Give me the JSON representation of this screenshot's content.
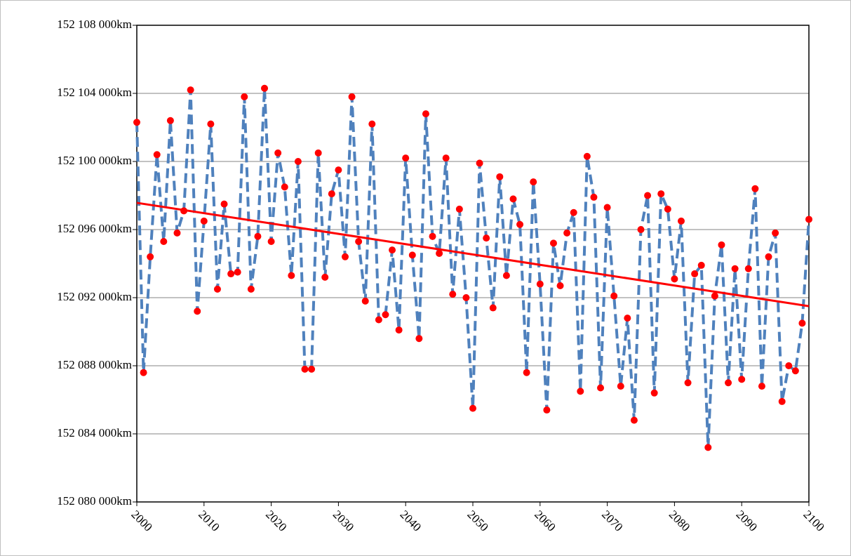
{
  "chart_data": {
    "type": "line",
    "x": [
      2000,
      2001,
      2002,
      2003,
      2004,
      2005,
      2006,
      2007,
      2008,
      2009,
      2010,
      2011,
      2012,
      2013,
      2014,
      2015,
      2016,
      2017,
      2018,
      2019,
      2020,
      2021,
      2022,
      2023,
      2024,
      2025,
      2026,
      2027,
      2028,
      2029,
      2030,
      2031,
      2032,
      2033,
      2034,
      2035,
      2036,
      2037,
      2038,
      2039,
      2040,
      2041,
      2042,
      2043,
      2044,
      2045,
      2046,
      2047,
      2048,
      2049,
      2050,
      2051,
      2052,
      2053,
      2054,
      2055,
      2056,
      2057,
      2058,
      2059,
      2060,
      2061,
      2062,
      2063,
      2064,
      2065,
      2066,
      2067,
      2068,
      2069,
      2070,
      2071,
      2072,
      2073,
      2074,
      2075,
      2076,
      2077,
      2078,
      2079,
      2080,
      2081,
      2082,
      2083,
      2084,
      2085,
      2086,
      2087,
      2088,
      2089,
      2090,
      2091,
      2092,
      2093,
      2094,
      2095,
      2096,
      2097,
      2098,
      2099,
      2100
    ],
    "series": [
      {
        "color": "#4f81bd",
        "marker_color": "#ff0000",
        "line_style": "dashed",
        "values": [
          152102300,
          152087600,
          152094400,
          152100400,
          152095300,
          152102400,
          152095800,
          152097100,
          152104200,
          152091200,
          152096500,
          152102200,
          152092500,
          152097500,
          152093400,
          152093500,
          152103800,
          152092500,
          152095600,
          152104300,
          152095300,
          152100500,
          152098500,
          152093300,
          152100000,
          152087800,
          152087800,
          152100500,
          152093200,
          152098100,
          152099500,
          152094400,
          152103800,
          152095300,
          152091800,
          152102200,
          152090700,
          152091000,
          152094800,
          152090100,
          152100200,
          152094500,
          152089600,
          152102800,
          152095600,
          152094600,
          152100200,
          152092200,
          152097200,
          152092000,
          152085500,
          152099900,
          152095500,
          152091400,
          152099100,
          152093300,
          152097800,
          152096300,
          152087600,
          152098800,
          152092800,
          152085400,
          152095200,
          152092700,
          152095800,
          152097000,
          152086500,
          152100300,
          152097900,
          152086700,
          152097300,
          152092100,
          152086800,
          152090800,
          152084800,
          152096000,
          152098000,
          152086400,
          152098100,
          152097200,
          152093100,
          152096500,
          152087000,
          152093400,
          152093900,
          152083200,
          152092100,
          152095100,
          152087000,
          152093700,
          152087200,
          152093700,
          152098400,
          152086800,
          152094400,
          152095800,
          152085900,
          152088000,
          152087700,
          152090500,
          152096600
        ]
      },
      {
        "color": "#ff0000",
        "line_style": "solid",
        "x": [
          2000,
          2100
        ],
        "values": [
          152097570,
          152091500
        ]
      }
    ],
    "xlim": [
      2000,
      2100
    ],
    "xticks": [
      2000,
      2010,
      2020,
      2030,
      2040,
      2050,
      2060,
      2070,
      2080,
      2090,
      2100
    ],
    "ylim": [
      152080000,
      152108000
    ],
    "yticks": [
      {
        "value": 152080000,
        "label": "152 080 000km"
      },
      {
        "value": 152084000,
        "label": "152 084 000km"
      },
      {
        "value": 152088000,
        "label": "152 088 000km"
      },
      {
        "value": 152092000,
        "label": "152 092 000km"
      },
      {
        "value": 152096000,
        "label": "152 096 000km"
      },
      {
        "value": 152100000,
        "label": "152 100 000km"
      },
      {
        "value": 152104000,
        "label": "152 104 000km"
      },
      {
        "value": 152108000,
        "label": "152 108 000km"
      }
    ],
    "grid": true
  }
}
